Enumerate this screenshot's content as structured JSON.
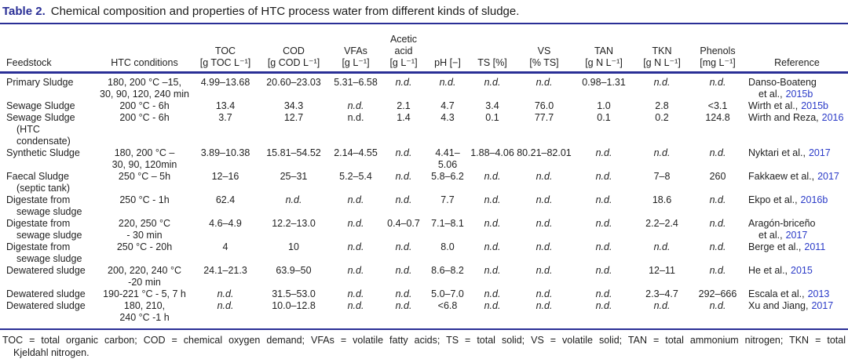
{
  "caption": {
    "label": "Table 2.",
    "text": "Chemical composition and properties of HTC process water from different kinds of sludge."
  },
  "colors": {
    "navy_accent": "#2a2f96",
    "citation_link_blue": "#2b3bc8",
    "body_text": "#1f1f1f"
  },
  "nd_label": "n.d.",
  "columns": [
    {
      "key": "feedstock",
      "lines": [
        "Feedstock"
      ],
      "align": "left",
      "width": 122
    },
    {
      "key": "conditions",
      "lines": [
        "HTC conditions"
      ],
      "align": "center",
      "width": 124
    },
    {
      "key": "toc",
      "lines": [
        "TOC",
        "[g TOC L⁻¹]"
      ],
      "align": "center",
      "width": 82
    },
    {
      "key": "cod",
      "lines": [
        "COD",
        "[g COD L⁻¹]"
      ],
      "align": "center",
      "width": 92
    },
    {
      "key": "vfas",
      "lines": [
        "VFAs",
        "[g L⁻¹]"
      ],
      "align": "center",
      "width": 66
    },
    {
      "key": "acetic",
      "lines": [
        "Acetic",
        "acid",
        "[g L⁻¹]"
      ],
      "align": "center",
      "width": 56
    },
    {
      "key": "ph",
      "lines": [
        "pH [−]"
      ],
      "align": "center",
      "width": 56
    },
    {
      "key": "ts",
      "lines": [
        "TS [%]"
      ],
      "align": "center",
      "width": 58
    },
    {
      "key": "vs",
      "lines": [
        "VS",
        "[% TS]"
      ],
      "align": "center",
      "width": 74
    },
    {
      "key": "tan",
      "lines": [
        "TAN",
        "[g N L⁻¹]"
      ],
      "align": "center",
      "width": 78
    },
    {
      "key": "tkn",
      "lines": [
        "TKN",
        "[g N L⁻¹]"
      ],
      "align": "center",
      "width": 70
    },
    {
      "key": "phenols",
      "lines": [
        "Phenols",
        "[mg L⁻¹]"
      ],
      "align": "center",
      "width": 72
    },
    {
      "key": "reference",
      "lines": [
        "Reference"
      ],
      "align": "left",
      "width": 130,
      "header_align": "center"
    }
  ],
  "rows": [
    {
      "feedstock": [
        "Primary Sludge"
      ],
      "conditions": [
        "180, 200 °C –15,",
        "30, 90, 120, 240 min"
      ],
      "toc": "4.99–13.68",
      "cod": "20.60–23.03",
      "vfas": "5.31–6.58",
      "acetic": "n.d.",
      "ph": "n.d.",
      "ts": "n.d.",
      "vs": "n.d.",
      "tan": "0.98–1.31",
      "tkn": "n.d.",
      "phenols": "n.d.",
      "reference": {
        "lines": [
          "Danso-Boateng",
          "et al.,"
        ],
        "year": "2015b"
      }
    },
    {
      "feedstock": [
        "Sewage Sludge"
      ],
      "conditions": [
        "200 °C - 6h"
      ],
      "toc": "13.4",
      "cod": "34.3",
      "vfas": "n.d.",
      "acetic": "2.1",
      "ph": "4.7",
      "ts": "3.4",
      "vs": "76.0",
      "tan": "1.0",
      "tkn": "2.8",
      "phenols": "<3.1",
      "reference": {
        "lines": [
          "Wirth et al.,"
        ],
        "year": "2015b"
      }
    },
    {
      "feedstock": [
        "Sewage Sludge",
        "(HTC condensate)"
      ],
      "conditions": [
        "200 °C - 6h"
      ],
      "toc": "3.7",
      "cod": "12.7",
      "vfas": {
        "text": "n.d.",
        "italic": false
      },
      "acetic": "1.4",
      "ph": "4.3",
      "ts": "0.1",
      "vs": "77.7",
      "tan": "0.1",
      "tkn": "0.2",
      "phenols": "124.8",
      "reference": {
        "lines": [
          "Wirth and Reza,"
        ],
        "year": "2016"
      }
    },
    {
      "feedstock": [
        "Synthetic Sludge"
      ],
      "conditions": [
        "180, 200 °C –",
        "30, 90, 120min"
      ],
      "toc": "3.89–10.38",
      "cod": "15.81–54.52",
      "vfas": "2.14–4.55",
      "acetic": "n.d.",
      "ph": "4.41–5.06",
      "ts": "1.88–4.06",
      "vs": "80.21–82.01",
      "tan": "n.d.",
      "tkn": "n.d.",
      "phenols": "n.d.",
      "reference": {
        "lines": [
          "Nyktari et al.,"
        ],
        "year": "2017"
      }
    },
    {
      "feedstock": [
        "Faecal Sludge",
        "(septic tank)"
      ],
      "conditions": [
        "250 °C – 5h"
      ],
      "toc": "12–16",
      "cod": "25–31",
      "vfas": "5.2–5.4",
      "acetic": "n.d.",
      "ph": "5.8–6.2",
      "ts": "n.d.",
      "vs": "n.d.",
      "tan": "n.d.",
      "tkn": "7–8",
      "phenols": "260",
      "reference": {
        "lines": [
          "Fakkaew et al.,"
        ],
        "year": "2017"
      }
    },
    {
      "feedstock": [
        "Digestate from",
        "sewage sludge"
      ],
      "conditions": [
        "250 °C - 1h"
      ],
      "toc": "62.4",
      "cod": "n.d.",
      "vfas": "n.d.",
      "acetic": "n.d.",
      "ph": "7.7",
      "ts": "n.d.",
      "vs": "n.d.",
      "tan": "n.d.",
      "tkn": "18.6",
      "phenols": "n.d.",
      "reference": {
        "lines": [
          "Ekpo et al.,"
        ],
        "year": "2016b"
      }
    },
    {
      "feedstock": [
        "Digestate from",
        "sewage sludge"
      ],
      "conditions": [
        "220, 250 °C",
        "- 30 min"
      ],
      "toc": "4.6–4.9",
      "cod": "12.2–13.0",
      "vfas": "n.d.",
      "acetic": "0.4–0.7",
      "ph": "7.1–8.1",
      "ts": "n.d.",
      "vs": "n.d.",
      "tan": "n.d.",
      "tkn": "2.2–2.4",
      "phenols": "n.d.",
      "reference": {
        "lines": [
          "Aragón-briceño",
          "et al.,"
        ],
        "year": "2017"
      }
    },
    {
      "feedstock": [
        "Digestate from",
        "sewage sludge"
      ],
      "conditions": [
        "250 °C - 20h"
      ],
      "toc": "4",
      "cod": "10",
      "vfas": "n.d.",
      "acetic": "n.d.",
      "ph": "8.0",
      "ts": "n.d.",
      "vs": "n.d.",
      "tan": "n.d.",
      "tkn": "n.d.",
      "phenols": "n.d.",
      "reference": {
        "lines": [
          "Berge et al.,"
        ],
        "year": "2011"
      }
    },
    {
      "feedstock": [
        "Dewatered sludge"
      ],
      "conditions": [
        "200, 220, 240 °C",
        "-20 min"
      ],
      "toc": "24.1–21.3",
      "cod": "63.9–50",
      "vfas": "n.d.",
      "acetic": "n.d.",
      "ph": "8.6–8.2",
      "ts": "n.d.",
      "vs": "n.d.",
      "tan": "n.d.",
      "tkn": "12–11",
      "phenols": "n.d.",
      "reference": {
        "lines": [
          "He et al.,"
        ],
        "year": "2015"
      }
    },
    {
      "feedstock": [
        "Dewatered sludge"
      ],
      "conditions": [
        "190-221 °C - 5, 7 h"
      ],
      "toc": "n.d.",
      "cod": "31.5–53.0",
      "vfas": "n.d.",
      "acetic": "n.d.",
      "ph": "5.0–7.0",
      "ts": "n.d.",
      "vs": "n.d.",
      "tan": "n.d.",
      "tkn": "2.3–4.7",
      "phenols": "292–666",
      "reference": {
        "lines": [
          "Escala et al.,"
        ],
        "year": "2013"
      }
    },
    {
      "feedstock": [
        "Dewatered sludge"
      ],
      "conditions": [
        "180, 210,",
        "240 °C -1 h"
      ],
      "toc": "n.d.",
      "cod": "10.0–12.8",
      "vfas": "n.d.",
      "acetic": "n.d.",
      "ph": "<6.8",
      "ts": "n.d.",
      "vs": "n.d.",
      "tan": "n.d.",
      "tkn": "n.d.",
      "phenols": "n.d.",
      "reference": {
        "lines": [
          "Xu and Jiang,"
        ],
        "year": "2017"
      }
    }
  ],
  "footnote": {
    "lines": [
      "TOC = total organic carbon; COD = chemical oxygen demand; VFAs = volatile fatty acids; TS = total solid; VS = volatile solid; TAN = total ammonium nitrogen; TKN = total",
      "Kjeldahl nitrogen."
    ]
  }
}
